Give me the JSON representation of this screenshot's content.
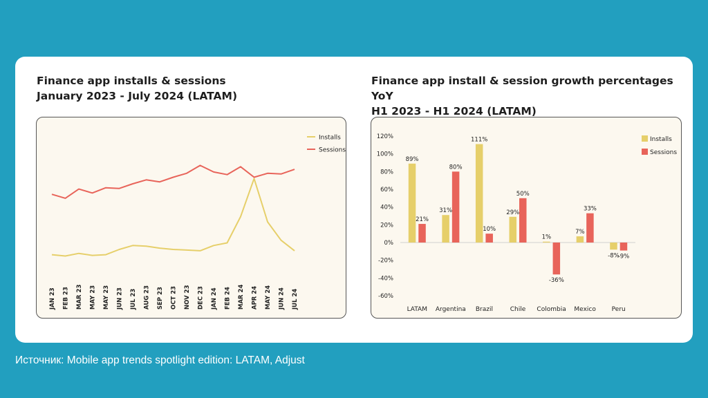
{
  "left": {
    "title_line1": "Finance app installs & sessions",
    "title_line2": "January 2023 - July 2024 (LATAM)"
  },
  "right": {
    "title_line1": "Finance app install & session growth percentages YoY",
    "title_line2": "H1 2023 - H1 2024 (LATAM)"
  },
  "caption": "Источник: Mobile app trends spotlight edition: LATAM, Adjust",
  "colors": {
    "installs": "#e6cf6a",
    "sessions": "#e8645a"
  },
  "chart_data": [
    {
      "type": "line",
      "title": "Finance app installs & sessions",
      "subtitle": "January 2023 - July 2024 (LATAM)",
      "categories": [
        "JAN 23",
        "FEB 23",
        "MAR 23",
        "MAY 23",
        "MAY 23",
        "JUN 23",
        "JUL 23",
        "AUG 23",
        "SEP 23",
        "OCT 23",
        "NOV 23",
        "DEC 23",
        "JAN 24",
        "FEB 24",
        "MAR 24",
        "APR 24",
        "MAY 24",
        "JUN 24",
        "JUL 24"
      ],
      "ylim": [
        0,
        100
      ],
      "series": [
        {
          "name": "Installs",
          "values": [
            6,
            5,
            7,
            5.5,
            6,
            10,
            13,
            12.5,
            11,
            10,
            9.5,
            9,
            13,
            15,
            35,
            64,
            31,
            17,
            9
          ]
        },
        {
          "name": "Sessions",
          "values": [
            52,
            49,
            56,
            53,
            57,
            56.5,
            60,
            63,
            61.5,
            65,
            68,
            74,
            69,
            67,
            73,
            65,
            68,
            67.5,
            71
          ]
        }
      ],
      "legend": "top-right",
      "grid": false
    },
    {
      "type": "bar",
      "title": "Finance app install & session growth percentages YoY",
      "subtitle": "H1 2023 - H1 2024 (LATAM)",
      "categories": [
        "LATAM",
        "Argentina",
        "Brazil",
        "Chile",
        "Colombia",
        "Mexico",
        "Peru"
      ],
      "ylim": [
        -60,
        120
      ],
      "yticks": [
        -60,
        -40,
        -20,
        0,
        20,
        40,
        60,
        80,
        100,
        120
      ],
      "ytick_labels": [
        "-60%",
        "-40%",
        "-20%",
        "0%",
        "20%",
        "40%",
        "60%",
        "80%",
        "100%",
        "120%"
      ],
      "series": [
        {
          "name": "Installs",
          "values": [
            89,
            31,
            111,
            29,
            1,
            7,
            -8
          ],
          "labels": [
            "89%",
            "31%",
            "111%",
            "29%",
            "1%",
            "7%",
            "-8%"
          ]
        },
        {
          "name": "Sessions",
          "values": [
            21,
            80,
            10,
            50,
            -36,
            33,
            -9
          ],
          "labels": [
            "21%",
            "80%",
            "10%",
            "50%",
            "-36%",
            "33%",
            "-9%"
          ]
        }
      ],
      "legend": "top-right",
      "grid": false
    }
  ]
}
